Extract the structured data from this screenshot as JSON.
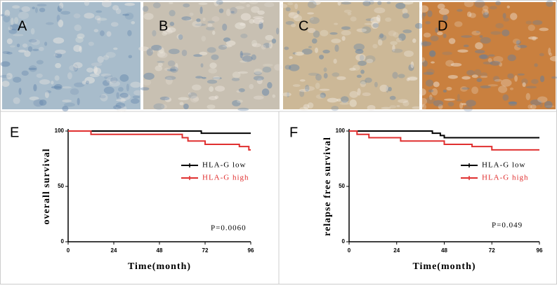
{
  "images": [
    {
      "label": "A",
      "color": "#a8bccb"
    },
    {
      "label": "B",
      "color": "#c8c0b2"
    },
    {
      "label": "C",
      "color": "#ccb897"
    },
    {
      "label": "D",
      "color": "#c9803f"
    }
  ],
  "chart_data": [
    {
      "type": "step",
      "panel_label": "E",
      "y_label": "overall survival",
      "x_label": "Time(month)",
      "annotation": "P=0.0060",
      "xlim": [
        0,
        96
      ],
      "xticks": [
        0,
        24,
        48,
        72,
        96
      ],
      "ylim": [
        0,
        100
      ],
      "yticks": [
        0,
        50,
        100
      ],
      "series": [
        {
          "name": "HLA-G low",
          "color": "#000000",
          "x": [
            0,
            70,
            96
          ],
          "values": [
            100,
            98,
            98
          ]
        },
        {
          "name": "HLA-G high",
          "color": "#e03030",
          "x": [
            0,
            12,
            60,
            63,
            72,
            90,
            95,
            96
          ],
          "values": [
            100,
            97,
            94,
            91,
            88,
            86,
            83,
            83
          ]
        }
      ]
    },
    {
      "type": "step",
      "panel_label": "F",
      "y_label": "relapse free survival",
      "x_label": "Time(month)",
      "annotation": "P=0.049",
      "xlim": [
        0,
        96
      ],
      "xticks": [
        0,
        24,
        48,
        72,
        96
      ],
      "ylim": [
        0,
        100
      ],
      "yticks": [
        0,
        50,
        100
      ],
      "series": [
        {
          "name": "HLA-G low",
          "color": "#000000",
          "x": [
            0,
            42,
            46,
            48,
            96
          ],
          "values": [
            100,
            98,
            96,
            94,
            94
          ]
        },
        {
          "name": "HLA-G high",
          "color": "#e03030",
          "x": [
            0,
            4,
            10,
            26,
            48,
            62,
            72,
            96
          ],
          "values": [
            100,
            97,
            94,
            91,
            88,
            86,
            83,
            83
          ]
        }
      ]
    }
  ]
}
